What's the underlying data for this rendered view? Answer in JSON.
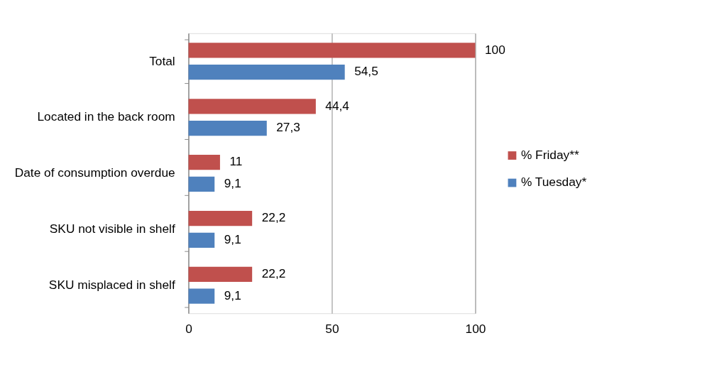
{
  "chart_data": {
    "type": "bar",
    "orientation": "horizontal",
    "categories": [
      "Total",
      "Located in the back room",
      "Date of consumption overdue",
      "SKU not visible in shelf",
      "SKU misplaced in shelf"
    ],
    "series": [
      {
        "name": "% Friday**",
        "color": "#c0504d",
        "values": [
          100,
          44.4,
          11,
          22.2,
          22.2
        ],
        "value_labels": [
          "100",
          "44,4",
          "11",
          "22,2",
          "22,2"
        ]
      },
      {
        "name": "% Tuesday*",
        "color": "#4f81bd",
        "values": [
          54.5,
          27.3,
          9.1,
          9.1,
          9.1
        ],
        "value_labels": [
          "54,5",
          "27,3",
          "9,1",
          "9,1",
          "9,1"
        ]
      }
    ],
    "xlim": [
      0,
      100
    ],
    "xticks": [
      0,
      50,
      100
    ],
    "grid": "x",
    "legend": "right"
  }
}
